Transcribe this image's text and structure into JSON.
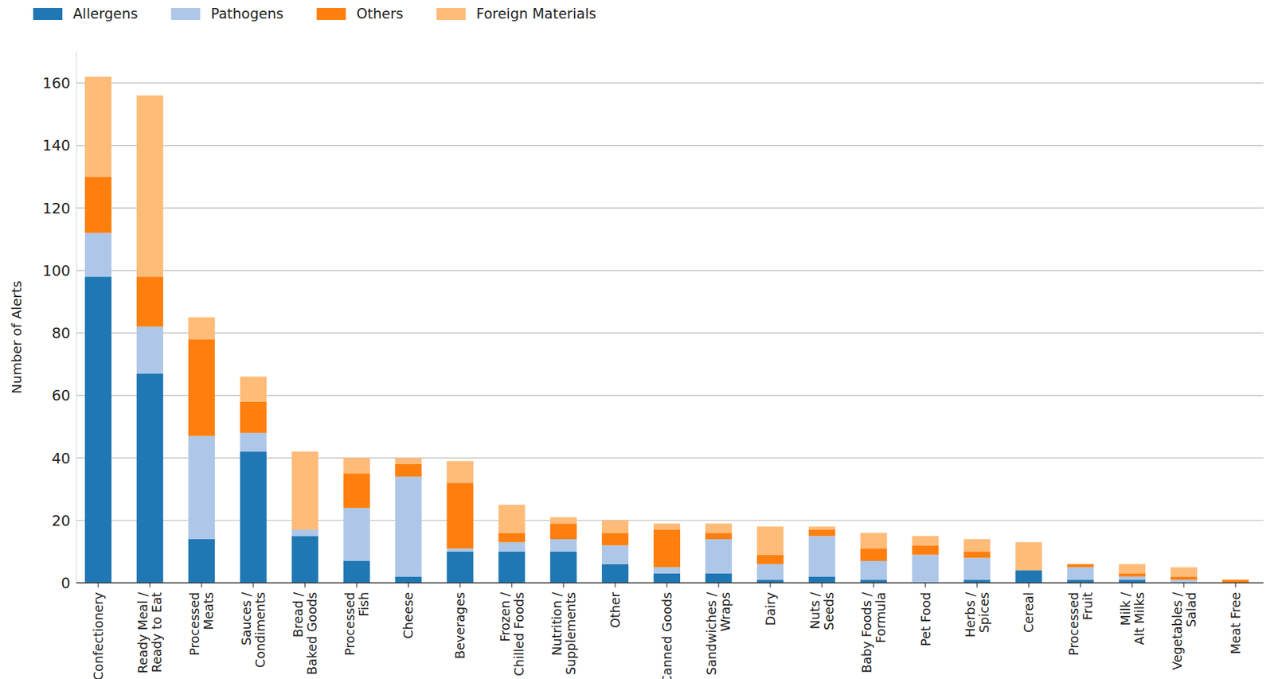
{
  "chart_data": {
    "type": "bar",
    "stacked": true,
    "grid": true,
    "legend": "top-left",
    "y_label": "Number of Alerts",
    "categories": [
      "Confectionery",
      "Ready Meal /\nReady to Eat",
      "Processed\nMeats",
      "Sauces /\nCondiments",
      "Bread /\nBaked Goods",
      "Processed\nFish",
      "Cheese",
      "Beverages",
      "Frozen /\nChilled Foods",
      "Nutrition /\nSupplements",
      "Other",
      "Canned Goods",
      "Sandwiches /\nWraps",
      "Dairy",
      "Nuts /\nSeeds",
      "Baby Foods /\nFormula",
      "Pet Food",
      "Herbs /\nSpices",
      "Cereal",
      "Processed\nFruit",
      "Milk /\nAlt Milks",
      "Vegetables /\nSalad",
      "Meat Free"
    ],
    "series": [
      {
        "name": "Allergens",
        "color": "#1f77b4",
        "values": [
          98,
          67,
          14,
          42,
          15,
          7,
          2,
          10,
          10,
          10,
          6,
          3,
          3,
          1,
          2,
          1,
          0,
          1,
          4,
          1,
          1,
          0,
          0
        ]
      },
      {
        "name": "Pathogens",
        "color": "#aec7e8",
        "values": [
          14,
          15,
          33,
          6,
          2,
          17,
          32,
          1,
          3,
          4,
          6,
          2,
          11,
          5,
          13,
          6,
          9,
          7,
          0,
          4,
          1,
          1,
          0
        ]
      },
      {
        "name": "Others",
        "color": "#ff7f0e",
        "values": [
          18,
          16,
          31,
          10,
          0,
          11,
          4,
          21,
          3,
          5,
          4,
          12,
          2,
          3,
          2,
          4,
          3,
          2,
          0,
          1,
          1,
          1,
          1
        ]
      },
      {
        "name": "Foreign Materials",
        "color": "#ffbb78",
        "values": [
          32,
          58,
          7,
          8,
          25,
          5,
          2,
          7,
          9,
          2,
          4,
          2,
          3,
          9,
          1,
          5,
          3,
          4,
          9,
          0,
          3,
          3,
          0
        ]
      }
    ],
    "ylim": [
      0,
      170
    ],
    "yticks": [
      0,
      20,
      40,
      60,
      80,
      100,
      120,
      140,
      160
    ]
  }
}
